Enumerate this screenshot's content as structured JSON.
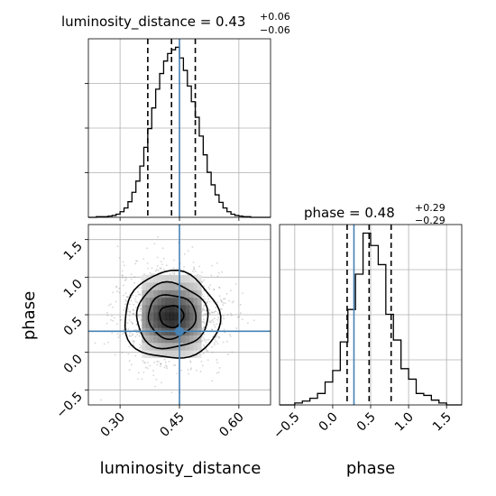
{
  "chart_data": {
    "type": "corner",
    "truth_color": "#4682b4",
    "line_color": "#000000",
    "parameters": [
      {
        "name": "luminosity_distance",
        "median": 0.43,
        "median_label": "0.43",
        "err_plus": "+0.06",
        "err_minus": "−0.06",
        "title_prefix": "luminosity_distance = ",
        "truth": 0.45,
        "quantiles": [
          0.37,
          0.43,
          0.49
        ],
        "range": [
          0.22,
          0.68
        ],
        "ticks": [
          0.3,
          0.45,
          0.6
        ],
        "tick_labels": [
          "0.30",
          "0.45",
          "0.60"
        ],
        "hist_bin_edges": [
          0.22,
          0.23,
          0.24,
          0.25,
          0.26,
          0.27,
          0.28,
          0.29,
          0.3,
          0.31,
          0.32,
          0.33,
          0.34,
          0.35,
          0.36,
          0.37,
          0.38,
          0.39,
          0.4,
          0.41,
          0.42,
          0.43,
          0.44,
          0.45,
          0.46,
          0.47,
          0.48,
          0.49,
          0.5,
          0.51,
          0.52,
          0.53,
          0.54,
          0.55,
          0.56,
          0.57,
          0.58,
          0.59,
          0.6,
          0.61,
          0.62,
          0.63,
          0.64,
          0.65,
          0.66,
          0.67,
          0.68
        ],
        "hist_counts": [
          0,
          0,
          1,
          1,
          1,
          2,
          3,
          5,
          9,
          15,
          25,
          40,
          58,
          82,
          112,
          142,
          175,
          205,
          230,
          250,
          262,
          268,
          272,
          255,
          235,
          210,
          185,
          160,
          130,
          100,
          72,
          52,
          36,
          24,
          15,
          9,
          5,
          3,
          2,
          1,
          1,
          0,
          0,
          0,
          0,
          0
        ]
      },
      {
        "name": "phase",
        "median": 0.48,
        "median_label": "0.48",
        "err_plus": "+0.29",
        "err_minus": "−0.29",
        "title_prefix": "phase = ",
        "truth": 0.28,
        "quantiles": [
          0.19,
          0.48,
          0.77
        ],
        "range": [
          -0.7,
          1.7
        ],
        "ticks": [
          -0.5,
          0.0,
          0.5,
          1.0,
          1.5
        ],
        "tick_labels": [
          "−0.5",
          "0.0",
          "0.5",
          "1.0",
          "1.5"
        ],
        "hist_bin_edges": [
          -0.7,
          -0.6,
          -0.5,
          -0.4,
          -0.3,
          -0.2,
          -0.1,
          0.0,
          0.1,
          0.2,
          0.3,
          0.4,
          0.5,
          0.6,
          0.7,
          0.8,
          0.9,
          1.0,
          1.1,
          1.2,
          1.3,
          1.4,
          1.5,
          1.6,
          1.7
        ],
        "hist_counts": [
          0,
          0,
          2,
          4,
          7,
          12,
          24,
          36,
          66,
          100,
          137,
          180,
          167,
          147,
          95,
          68,
          38,
          27,
          12,
          10,
          5,
          2,
          0,
          0
        ]
      }
    ],
    "scatter": {
      "truth_point": [
        0.45,
        0.28
      ],
      "center": [
        0.43,
        0.48
      ],
      "sigma": [
        0.06,
        0.29
      ],
      "n_points": 1400
    },
    "contour_levels": [
      0.5,
      1.0,
      1.5,
      2.0
    ]
  },
  "labels": {
    "xlabel_left": "luminosity_distance",
    "xlabel_right": "phase",
    "ylabel_left": "phase"
  }
}
